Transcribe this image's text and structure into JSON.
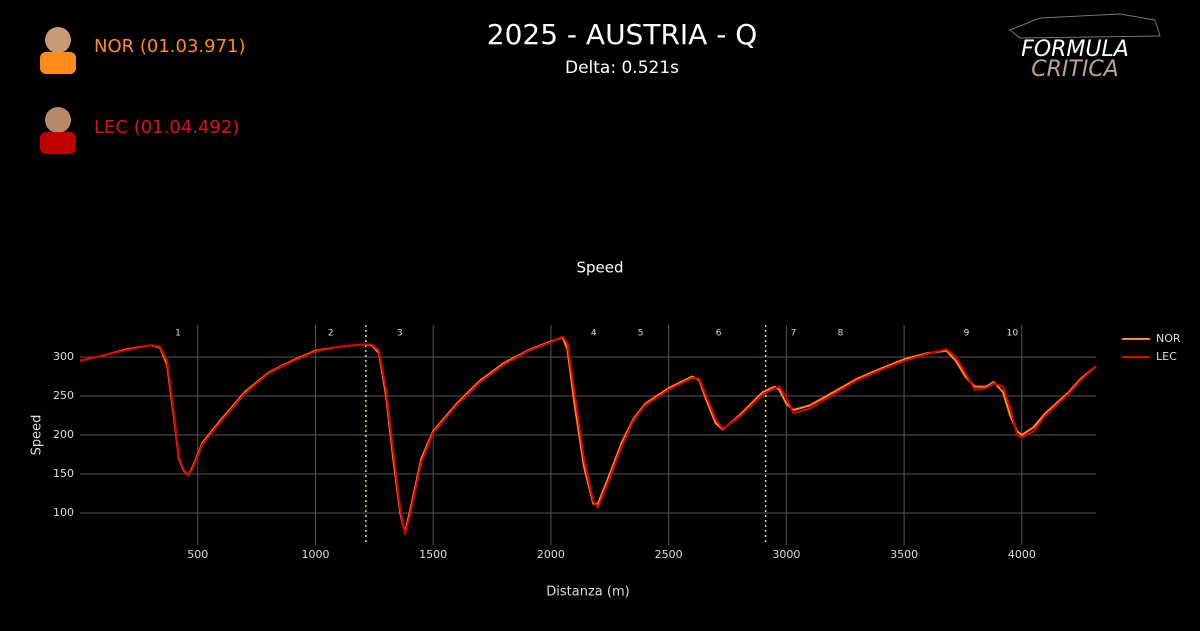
{
  "header": {
    "drivers": [
      {
        "label": "NOR (01.03.971)",
        "color": "#ff8c1a"
      },
      {
        "label": "LEC (01.04.492)",
        "color": "#e01010"
      }
    ],
    "title": "2025 - AUSTRIA - Q",
    "subtitle": "Delta: 0.521s",
    "logo": [
      "FORMULA",
      "CRITICA"
    ]
  },
  "chart_data": {
    "type": "line",
    "title": "Speed",
    "x_label": "Distanza (m)",
    "y_label": "Speed",
    "x": [
      0,
      100,
      200,
      300,
      340,
      370,
      400,
      420,
      440,
      460,
      480,
      520,
      600,
      700,
      800,
      900,
      1000,
      1100,
      1200,
      1240,
      1270,
      1300,
      1330,
      1360,
      1380,
      1400,
      1450,
      1500,
      1600,
      1700,
      1800,
      1900,
      2000,
      2050,
      2070,
      2100,
      2140,
      2180,
      2200,
      2250,
      2300,
      2350,
      2400,
      2500,
      2600,
      2630,
      2660,
      2700,
      2730,
      2800,
      2900,
      2950,
      2970,
      3000,
      3030,
      3100,
      3200,
      3300,
      3400,
      3500,
      3600,
      3680,
      3720,
      3760,
      3800,
      3850,
      3880,
      3920,
      3950,
      3980,
      4000,
      4050,
      4100,
      4200,
      4250,
      4315
    ],
    "series": [
      {
        "name": "NOR",
        "color": "#ff8c1a",
        "values": [
          295,
          302,
          310,
          315,
          312,
          290,
          220,
          170,
          155,
          148,
          160,
          190,
          220,
          255,
          280,
          295,
          308,
          313,
          316,
          315,
          305,
          250,
          170,
          100,
          75,
          100,
          170,
          205,
          240,
          270,
          292,
          308,
          320,
          325,
          310,
          240,
          160,
          112,
          112,
          150,
          190,
          220,
          240,
          260,
          275,
          270,
          245,
          215,
          207,
          225,
          255,
          262,
          258,
          240,
          232,
          238,
          255,
          272,
          285,
          297,
          305,
          308,
          295,
          275,
          262,
          262,
          268,
          255,
          225,
          205,
          200,
          210,
          228,
          255,
          272,
          288
        ]
      },
      {
        "name": "LEC",
        "color": "#dc0000",
        "values": [
          295,
          302,
          309,
          315,
          313,
          295,
          225,
          172,
          156,
          148,
          158,
          188,
          218,
          253,
          279,
          294,
          307,
          313,
          316,
          316,
          308,
          258,
          180,
          105,
          73,
          95,
          165,
          203,
          238,
          268,
          290,
          307,
          319,
          326,
          318,
          255,
          170,
          115,
          107,
          145,
          185,
          218,
          238,
          258,
          273,
          272,
          250,
          220,
          208,
          223,
          252,
          260,
          262,
          248,
          228,
          234,
          252,
          270,
          283,
          295,
          304,
          310,
          300,
          280,
          258,
          260,
          266,
          262,
          235,
          200,
          197,
          205,
          225,
          253,
          270,
          288
        ]
      }
    ],
    "xlim": [
      0,
      4315
    ],
    "ylim": [
      59,
      341
    ],
    "xticks": [
      500,
      1000,
      1500,
      2000,
      2500,
      3000,
      3500,
      4000
    ],
    "yticks": [
      100,
      150,
      200,
      250,
      300
    ],
    "grid": true,
    "legend": "right",
    "sector_lines": [
      1214,
      2912
    ],
    "sector_color": "#e8e800",
    "corners": {
      "labels": [
        "1",
        "2",
        "3",
        "4",
        "5",
        "6",
        "7",
        "8",
        "9",
        "10"
      ],
      "x": [
        416,
        1065,
        1358,
        2182,
        2381,
        2712,
        3030,
        3230,
        3765,
        3960
      ]
    }
  }
}
